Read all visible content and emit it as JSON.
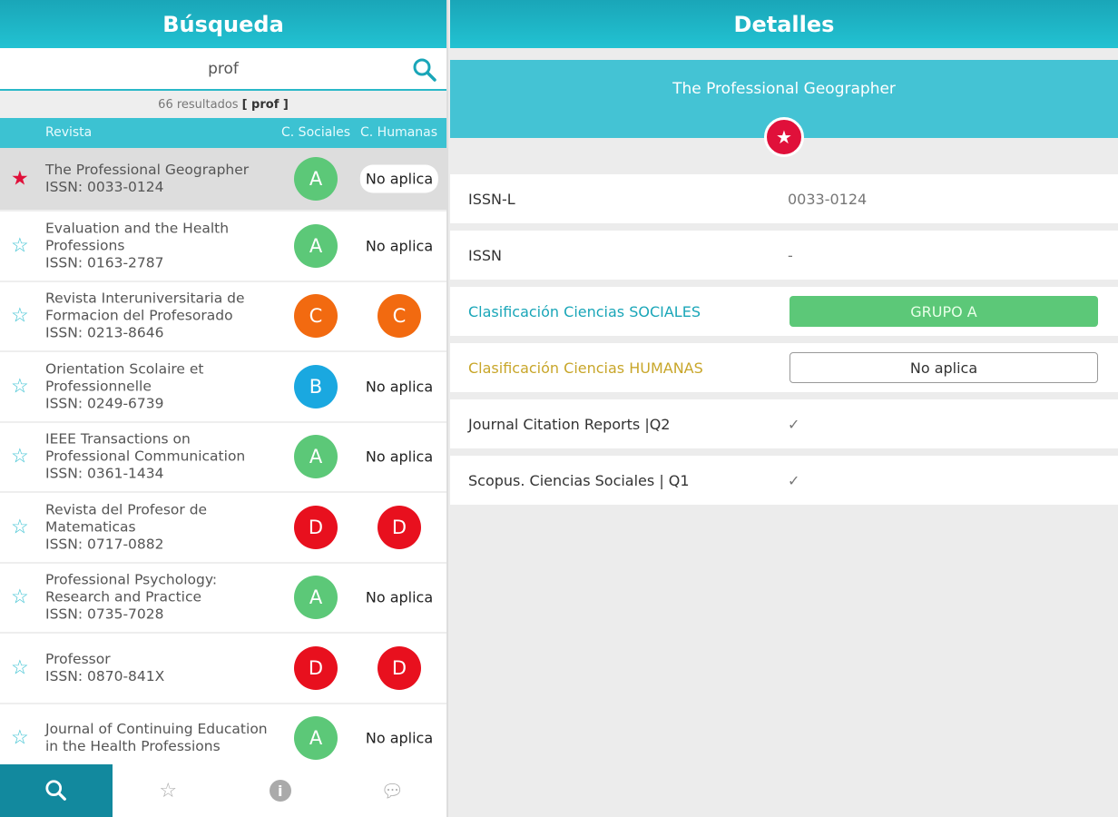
{
  "left": {
    "title": "Búsqueda",
    "search_value": "prof",
    "count_text": "66 resultados",
    "count_query": "[ prof ]",
    "columns": {
      "revista": "Revista",
      "sociales": "C. Sociales",
      "humanas": "C. Humanas"
    },
    "rows": [
      {
        "title": "The Professional Geographer",
        "issn": "ISSN: 0033-0124",
        "soc": "A",
        "hum": "No aplica",
        "fav": true
      },
      {
        "title": "Evaluation and the Health Professions",
        "issn": "ISSN: 0163-2787",
        "soc": "A",
        "hum": "No aplica"
      },
      {
        "title": "Revista Interuniversitaria de Formacion del Profesorado",
        "issn": "ISSN: 0213-8646",
        "soc": "C",
        "hum": "C"
      },
      {
        "title": "Orientation Scolaire et Professionnelle",
        "issn": "ISSN: 0249-6739",
        "soc": "B",
        "hum": "No aplica"
      },
      {
        "title": "IEEE Transactions on Professional Communication",
        "issn": "ISSN: 0361-1434",
        "soc": "A",
        "hum": "No aplica"
      },
      {
        "title": "Revista del Profesor de Matematicas",
        "issn": "ISSN: 0717-0882",
        "soc": "D",
        "hum": "D"
      },
      {
        "title": "Professional Psychology: Research and Practice",
        "issn": "ISSN: 0735-7028",
        "soc": "A",
        "hum": "No aplica"
      },
      {
        "title": "Professor",
        "issn": "ISSN: 0870-841X",
        "soc": "D",
        "hum": "D"
      },
      {
        "title": "Journal of Continuing Education in the Health Professions",
        "issn": "",
        "soc": "A",
        "hum": "No aplica"
      }
    ],
    "tabs": [
      "search-icon",
      "star-icon",
      "info-icon",
      "chat-icon"
    ]
  },
  "colors": {
    "A": "#5cc878",
    "B": "#1aa8e0",
    "C": "#f26a10",
    "D": "#e8101e",
    "accent": "#22c2d2",
    "favorite": "#e0103a"
  },
  "right": {
    "title": "Detalles",
    "journal": "The Professional Geographer",
    "rows": [
      {
        "label": "ISSN-L",
        "value": "0033-0124"
      },
      {
        "label": "ISSN",
        "value": "-"
      },
      {
        "label": "Clasificación Ciencias SOCIALES",
        "value": "GRUPO A"
      },
      {
        "label": "Clasificación Ciencias HUMANAS",
        "value": "No aplica"
      },
      {
        "label": "Journal Citation Reports |Q2",
        "value": "✓"
      },
      {
        "label": "Scopus. Ciencias Sociales | Q1",
        "value": "✓"
      }
    ]
  }
}
